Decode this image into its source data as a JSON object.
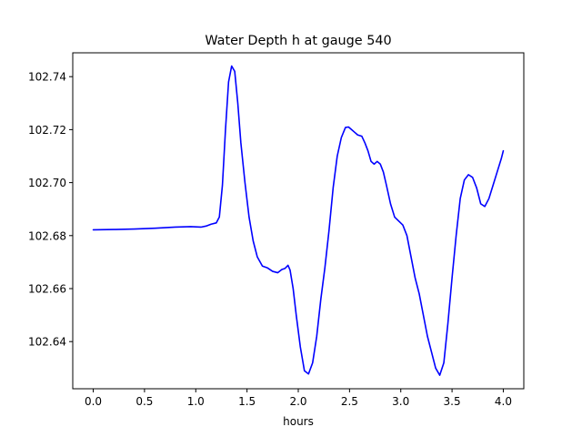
{
  "chart_data": {
    "type": "line",
    "title": "Water Depth h at gauge 540",
    "xlabel": "hours",
    "ylabel": "",
    "xlim": [
      -0.2,
      4.2
    ],
    "ylim": [
      102.6222,
      102.749
    ],
    "grid": false,
    "xticks": [
      0.0,
      0.5,
      1.0,
      1.5,
      2.0,
      2.5,
      3.0,
      3.5,
      4.0
    ],
    "xtick_labels": [
      "0.0",
      "0.5",
      "1.0",
      "1.5",
      "2.0",
      "2.5",
      "3.0",
      "3.5",
      "4.0"
    ],
    "yticks": [
      102.64,
      102.66,
      102.68,
      102.7,
      102.72,
      102.74
    ],
    "ytick_labels": [
      "102.64",
      "102.66",
      "102.68",
      "102.70",
      "102.72",
      "102.74"
    ],
    "series": [
      {
        "color": "#0000ff",
        "x": [
          0.0,
          0.2,
          0.4,
          0.6,
          0.8,
          0.95,
          1.05,
          1.1,
          1.15,
          1.2,
          1.23,
          1.26,
          1.29,
          1.32,
          1.35,
          1.38,
          1.41,
          1.44,
          1.48,
          1.52,
          1.56,
          1.6,
          1.65,
          1.7,
          1.75,
          1.8,
          1.84,
          1.87,
          1.9,
          1.92,
          1.95,
          1.98,
          2.02,
          2.06,
          2.1,
          2.14,
          2.18,
          2.22,
          2.26,
          2.3,
          2.34,
          2.38,
          2.42,
          2.46,
          2.49,
          2.52,
          2.55,
          2.58,
          2.62,
          2.65,
          2.68,
          2.71,
          2.74,
          2.77,
          2.8,
          2.83,
          2.86,
          2.9,
          2.94,
          2.98,
          3.02,
          3.06,
          3.1,
          3.14,
          3.18,
          3.22,
          3.26,
          3.3,
          3.34,
          3.38,
          3.42,
          3.46,
          3.5,
          3.54,
          3.58,
          3.62,
          3.66,
          3.7,
          3.74,
          3.78,
          3.82,
          3.86,
          3.9,
          3.94,
          3.98,
          4.0
        ],
        "y": [
          102.6822,
          102.6823,
          102.6825,
          102.6828,
          102.6832,
          102.6834,
          102.6832,
          102.6836,
          102.6843,
          102.6848,
          102.687,
          102.699,
          102.72,
          102.738,
          102.744,
          102.742,
          102.73,
          102.715,
          102.7,
          102.687,
          102.678,
          102.672,
          102.6685,
          102.6678,
          102.6665,
          102.666,
          102.6672,
          102.6676,
          102.6688,
          102.667,
          102.66,
          102.65,
          102.638,
          102.629,
          102.6278,
          102.632,
          102.642,
          102.656,
          102.668,
          102.682,
          102.698,
          102.71,
          102.717,
          102.7208,
          102.721,
          102.72,
          102.719,
          102.718,
          102.7175,
          102.715,
          102.712,
          102.708,
          102.707,
          102.708,
          102.707,
          102.704,
          102.699,
          102.692,
          102.687,
          102.6855,
          102.684,
          102.68,
          102.672,
          102.664,
          102.658,
          102.65,
          102.642,
          102.636,
          102.63,
          102.6273,
          102.632,
          102.647,
          102.664,
          102.68,
          102.694,
          102.701,
          102.703,
          102.702,
          102.698,
          102.692,
          102.691,
          102.694,
          102.699,
          102.704,
          102.709,
          102.712
        ]
      }
    ]
  }
}
